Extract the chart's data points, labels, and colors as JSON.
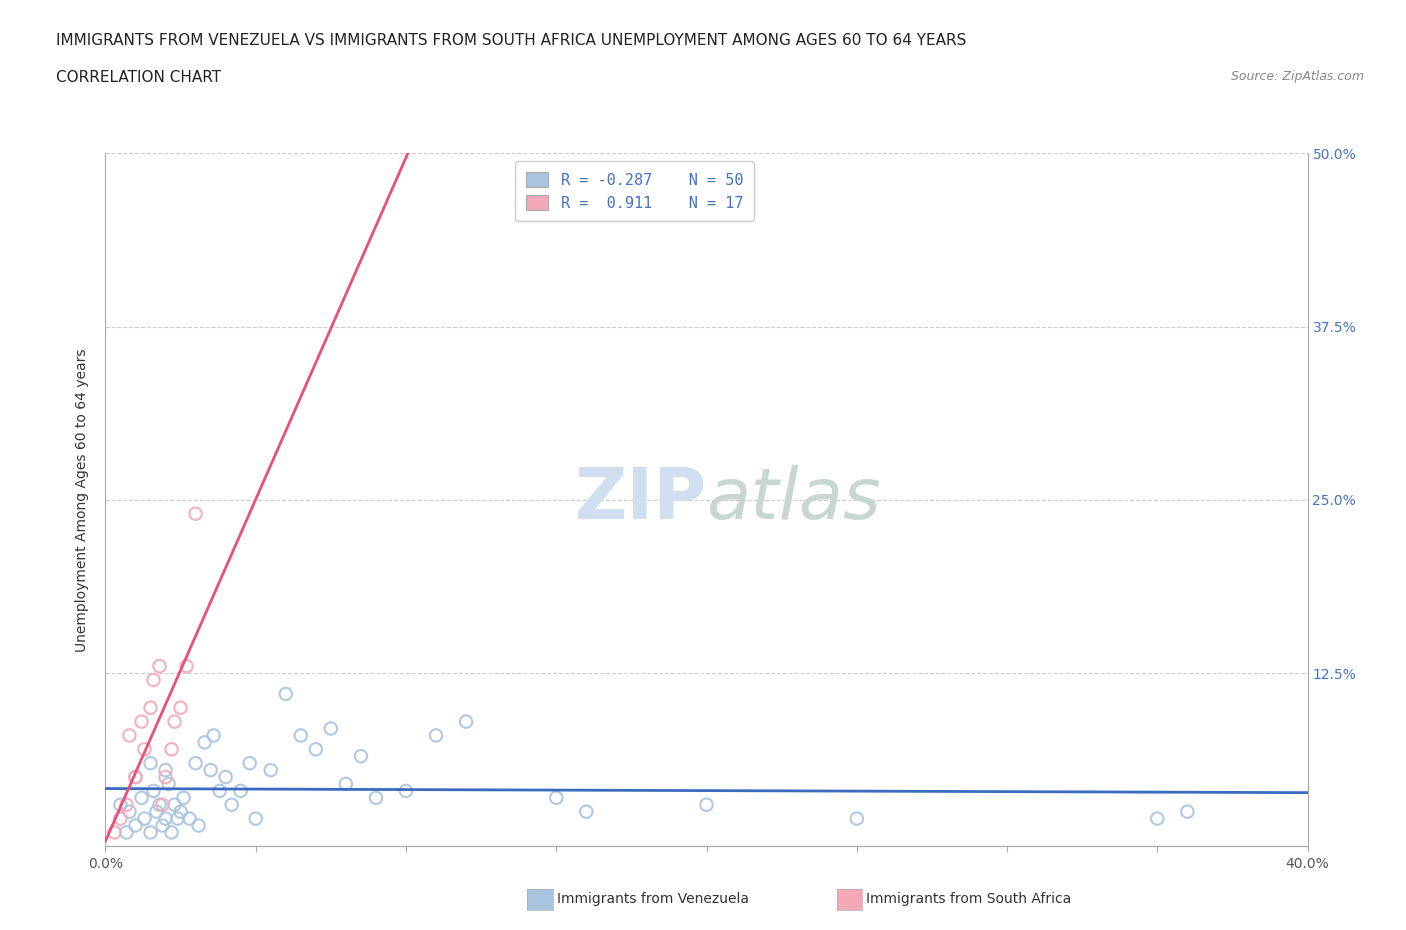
{
  "title_line1": "IMMIGRANTS FROM VENEZUELA VS IMMIGRANTS FROM SOUTH AFRICA UNEMPLOYMENT AMONG AGES 60 TO 64 YEARS",
  "title_line2": "CORRELATION CHART",
  "source_text": "Source: ZipAtlas.com",
  "ylabel": "Unemployment Among Ages 60 to 64 years",
  "xlim": [
    0.0,
    0.4
  ],
  "ylim": [
    0.0,
    0.5
  ],
  "venezuela_color": "#a8c4e0",
  "venezuela_edge_color": "#7aaad0",
  "south_africa_color": "#f4a8b8",
  "south_africa_edge_color": "#e888a8",
  "venezuela_line_color": "#3a6bbf",
  "south_africa_line_color": "#e8507a",
  "venezuela_R": -0.287,
  "venezuela_N": 50,
  "south_africa_R": 0.911,
  "south_africa_N": 17,
  "watermark_color": "#d0dff0",
  "venezuela_x": [
    0.005,
    0.007,
    0.008,
    0.01,
    0.01,
    0.012,
    0.013,
    0.015,
    0.015,
    0.016,
    0.017,
    0.018,
    0.019,
    0.02,
    0.02,
    0.021,
    0.022,
    0.023,
    0.024,
    0.025,
    0.026,
    0.028,
    0.03,
    0.031,
    0.033,
    0.035,
    0.036,
    0.038,
    0.04,
    0.042,
    0.045,
    0.048,
    0.05,
    0.055,
    0.06,
    0.065,
    0.07,
    0.075,
    0.08,
    0.085,
    0.09,
    0.1,
    0.11,
    0.12,
    0.15,
    0.16,
    0.2,
    0.25,
    0.35,
    0.36
  ],
  "venezuela_y": [
    0.03,
    0.01,
    0.025,
    0.05,
    0.015,
    0.035,
    0.02,
    0.06,
    0.01,
    0.04,
    0.025,
    0.03,
    0.015,
    0.055,
    0.02,
    0.045,
    0.01,
    0.03,
    0.02,
    0.025,
    0.035,
    0.02,
    0.06,
    0.015,
    0.075,
    0.055,
    0.08,
    0.04,
    0.05,
    0.03,
    0.04,
    0.06,
    0.02,
    0.055,
    0.11,
    0.08,
    0.07,
    0.085,
    0.045,
    0.065,
    0.035,
    0.04,
    0.08,
    0.09,
    0.035,
    0.025,
    0.03,
    0.02,
    0.02,
    0.025
  ],
  "south_africa_x": [
    0.003,
    0.005,
    0.007,
    0.008,
    0.01,
    0.012,
    0.013,
    0.015,
    0.016,
    0.018,
    0.019,
    0.02,
    0.022,
    0.023,
    0.025,
    0.027,
    0.03
  ],
  "south_africa_y": [
    0.01,
    0.02,
    0.03,
    0.08,
    0.05,
    0.09,
    0.07,
    0.1,
    0.12,
    0.13,
    0.03,
    0.05,
    0.07,
    0.09,
    0.1,
    0.13,
    0.24
  ],
  "background_color": "#ffffff",
  "grid_color": "#cccccc",
  "title_fontsize": 11,
  "axis_label_fontsize": 10,
  "tick_fontsize": 10,
  "right_tick_color": "#4472c4"
}
